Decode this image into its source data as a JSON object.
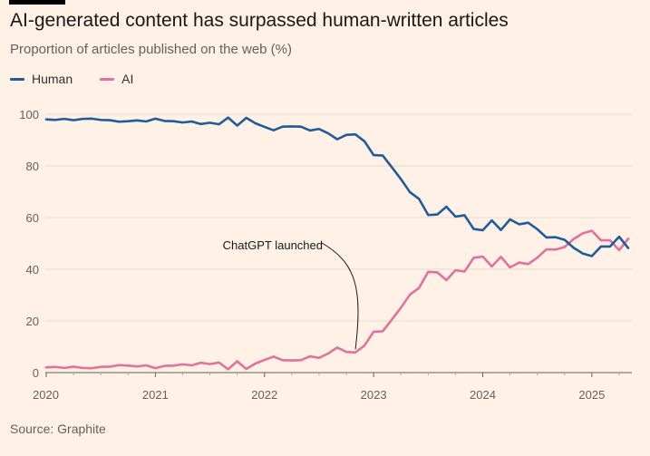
{
  "header": {
    "title": "AI-generated content has surpassed human-written articles",
    "subtitle": "Proportion of articles published on the web (%)"
  },
  "footer": {
    "source": "Source: Graphite"
  },
  "colors": {
    "background": "#FFF1E5",
    "human": "#1F5C99",
    "ai": "#E3719C",
    "grid": "#E6D9CE"
  },
  "chart_data": {
    "type": "line",
    "title": "AI-generated content has surpassed human-written articles",
    "subtitle": "Proportion of articles published on the web (%)",
    "xlabel": "",
    "ylabel": "",
    "ylim": [
      0,
      100
    ],
    "yticks": [
      0,
      20,
      40,
      60,
      80,
      100
    ],
    "xlim": [
      "2020-01",
      "2025-05"
    ],
    "xticks": [
      "2020",
      "2021",
      "2022",
      "2023",
      "2024",
      "2025"
    ],
    "grid": "horizontal",
    "legend": "top-left",
    "x": [
      "2020-01",
      "2020-02",
      "2020-03",
      "2020-04",
      "2020-05",
      "2020-06",
      "2020-07",
      "2020-08",
      "2020-09",
      "2020-10",
      "2020-11",
      "2020-12",
      "2021-01",
      "2021-02",
      "2021-03",
      "2021-04",
      "2021-05",
      "2021-06",
      "2021-07",
      "2021-08",
      "2021-09",
      "2021-10",
      "2021-11",
      "2021-12",
      "2022-01",
      "2022-02",
      "2022-03",
      "2022-04",
      "2022-05",
      "2022-06",
      "2022-07",
      "2022-08",
      "2022-09",
      "2022-10",
      "2022-11",
      "2022-12",
      "2023-01",
      "2023-02",
      "2023-03",
      "2023-04",
      "2023-05",
      "2023-06",
      "2023-07",
      "2023-08",
      "2023-09",
      "2023-10",
      "2023-11",
      "2023-12",
      "2024-01",
      "2024-02",
      "2024-03",
      "2024-04",
      "2024-05",
      "2024-06",
      "2024-07",
      "2024-08",
      "2024-09",
      "2024-10",
      "2024-11",
      "2024-12",
      "2025-01",
      "2025-02",
      "2025-03",
      "2025-04",
      "2025-05"
    ],
    "series": [
      {
        "name": "Human",
        "color": "#1F5C99",
        "values": [
          98,
          97.8,
          98.2,
          97.7,
          98.2,
          98.3,
          97.8,
          97.7,
          97.1,
          97.3,
          97.6,
          97.2,
          98.3,
          97.4,
          97.3,
          96.8,
          97.2,
          96.2,
          96.7,
          96.1,
          98.7,
          95.6,
          98.6,
          96.5,
          95.1,
          93.8,
          95.2,
          95.3,
          95.2,
          93.7,
          94.3,
          92.6,
          90.3,
          92.0,
          92.2,
          89.5,
          84.2,
          84.0,
          79.5,
          74.9,
          69.8,
          67.2,
          61.0,
          61.2,
          64.2,
          60.4,
          60.9,
          55.6,
          55.1,
          58.9,
          55.2,
          59.3,
          57.4,
          58.0,
          55.5,
          52.3,
          52.4,
          51.4,
          48.3,
          46.1,
          45.1,
          48.8,
          48.8,
          52.6,
          48.2
        ]
      },
      {
        "name": "AI",
        "color": "#E3719C",
        "values": [
          2,
          2.2,
          1.8,
          2.3,
          1.8,
          1.7,
          2.2,
          2.3,
          2.9,
          2.7,
          2.4,
          2.8,
          1.7,
          2.6,
          2.7,
          3.2,
          2.8,
          3.8,
          3.3,
          3.9,
          1.3,
          4.4,
          1.4,
          3.5,
          4.9,
          6.2,
          4.8,
          4.7,
          4.8,
          6.3,
          5.7,
          7.4,
          9.7,
          8.0,
          7.8,
          10.5,
          15.8,
          16.0,
          20.5,
          25.1,
          30.2,
          32.8,
          39.0,
          38.8,
          35.8,
          39.6,
          39.1,
          44.4,
          44.9,
          41.1,
          44.8,
          40.7,
          42.6,
          42.0,
          44.5,
          47.7,
          47.6,
          48.6,
          51.7,
          53.9,
          54.9,
          51.2,
          51.2,
          47.4,
          51.8
        ]
      }
    ],
    "annotations": [
      {
        "text": "ChatGPT launched",
        "x": "2022-11",
        "y": 8
      }
    ]
  }
}
